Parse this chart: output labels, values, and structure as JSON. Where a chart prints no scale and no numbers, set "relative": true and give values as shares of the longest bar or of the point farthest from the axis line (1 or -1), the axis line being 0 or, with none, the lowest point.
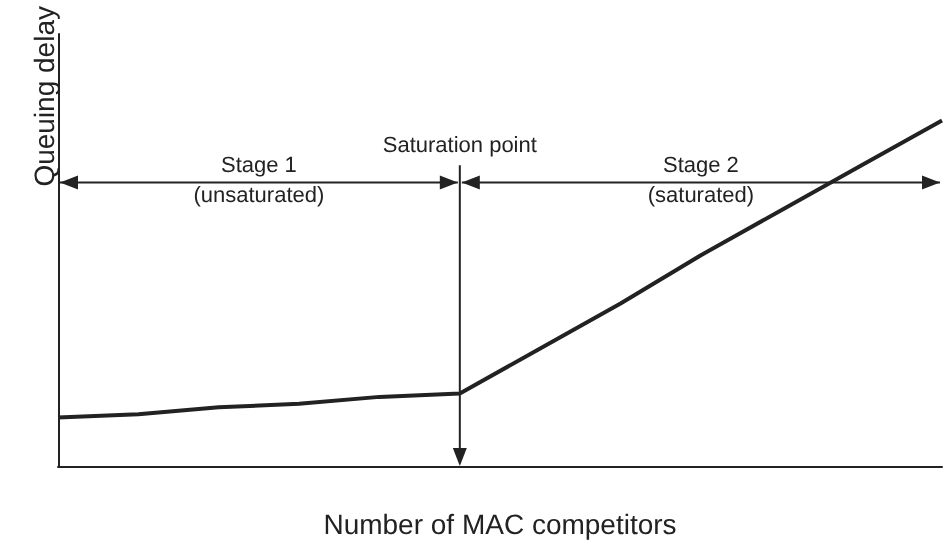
{
  "chart_data": {
    "type": "line",
    "relative": true,
    "xlabel": "Number of MAC competitors",
    "ylabel": "Queuing delay",
    "categories": [
      null,
      null,
      null,
      null,
      null,
      null,
      null,
      null,
      null,
      null,
      null,
      null
    ],
    "series": [
      {
        "color": "#222222",
        "values": [
          0.14,
          0.15,
          0.17,
          0.18,
          0.2,
          0.21,
          0.34,
          0.47,
          0.61,
          0.74,
          0.87,
          1
        ]
      }
    ],
    "annotations": [
      "Saturation point",
      "Stage 1\n(unsaturated)",
      "Stage 2\n(saturated)"
    ]
  }
}
